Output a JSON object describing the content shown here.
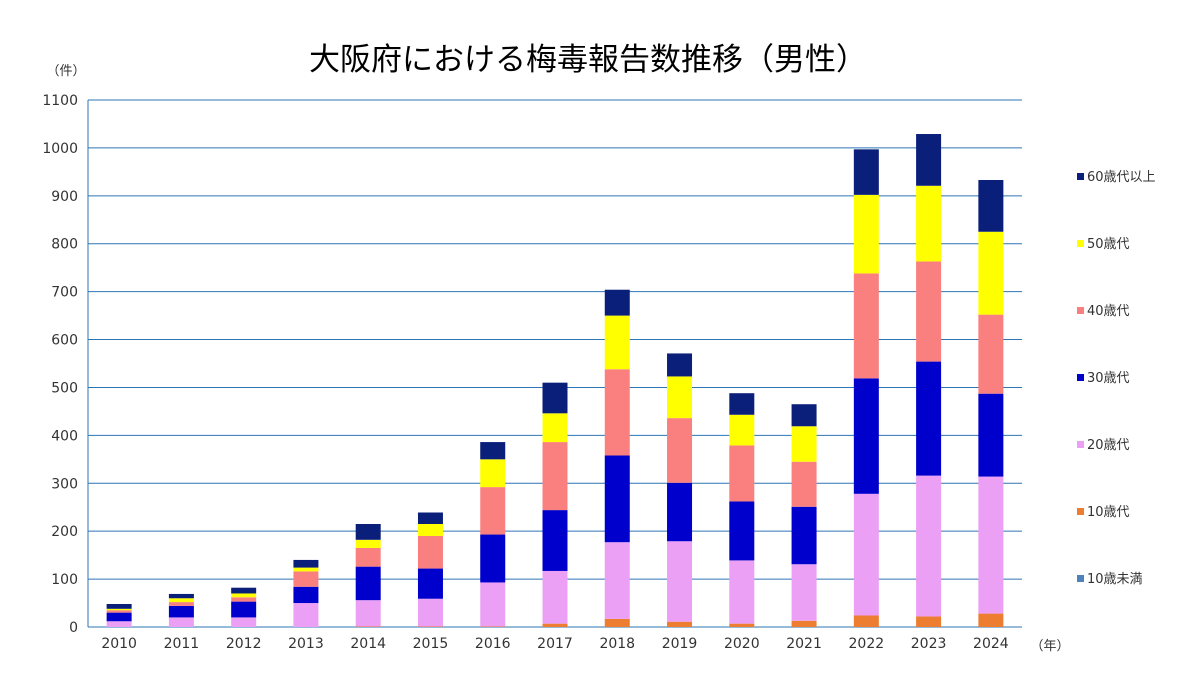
{
  "chart_data": {
    "type": "bar",
    "stacked": true,
    "title": "大阪府における梅毒報告数推移（男性）",
    "ylabel": "（件）",
    "xlabel": "（年）",
    "ylim": [
      0,
      1100
    ],
    "yticks": [
      0,
      100,
      200,
      300,
      400,
      500,
      600,
      700,
      800,
      900,
      1000,
      1100
    ],
    "grid": true,
    "legend_position": "right",
    "categories": [
      "2010",
      "2011",
      "2012",
      "2013",
      "2014",
      "2015",
      "2016",
      "2017",
      "2018",
      "2019",
      "2020",
      "2021",
      "2022",
      "2023",
      "2024"
    ],
    "series": [
      {
        "name": "10歳未満",
        "color": "#4F81BD",
        "values": [
          0,
          0,
          0,
          0,
          0,
          0,
          0,
          0,
          0,
          0,
          0,
          0,
          0,
          0,
          0
        ]
      },
      {
        "name": "10歳代",
        "color": "#ED7D31",
        "values": [
          0,
          0,
          0,
          0,
          1,
          1,
          1,
          7,
          17,
          11,
          7,
          13,
          24,
          22,
          28
        ]
      },
      {
        "name": "20歳代",
        "color": "#EBA0F5",
        "values": [
          12,
          20,
          20,
          50,
          55,
          58,
          92,
          110,
          160,
          168,
          132,
          118,
          254,
          294,
          286
        ]
      },
      {
        "name": "30歳代",
        "color": "#0000CC",
        "values": [
          18,
          24,
          33,
          34,
          70,
          63,
          100,
          127,
          181,
          122,
          123,
          120,
          241,
          238,
          173
        ]
      },
      {
        "name": "40歳代",
        "color": "#FA8080",
        "values": [
          5,
          8,
          9,
          32,
          39,
          68,
          99,
          142,
          180,
          135,
          117,
          94,
          219,
          209,
          165
        ]
      },
      {
        "name": "50歳代",
        "color": "#FFFF00",
        "values": [
          3,
          8,
          8,
          8,
          17,
          25,
          58,
          60,
          112,
          87,
          64,
          74,
          164,
          158,
          173
        ]
      },
      {
        "name": "60歳代以上",
        "color": "#0A1F7A",
        "values": [
          10,
          9,
          12,
          16,
          33,
          24,
          36,
          64,
          54,
          48,
          45,
          46,
          95,
          108,
          108
        ]
      }
    ]
  }
}
